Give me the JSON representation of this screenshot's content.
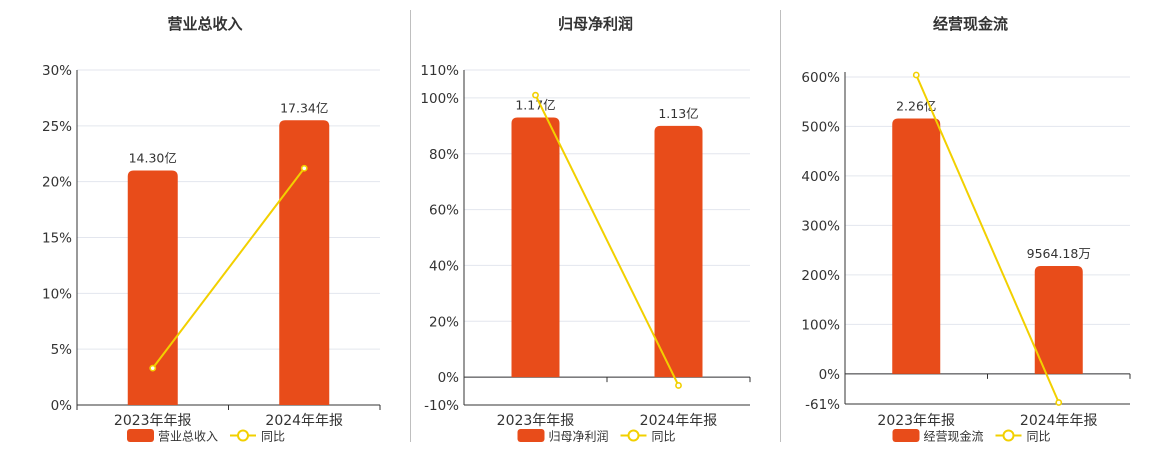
{
  "colors": {
    "bar": "#e84c1a",
    "line": "#f2d000",
    "axis": "#333333",
    "grid": "#e3e6ee",
    "text": "#333333"
  },
  "legend_line_label": "同比",
  "chart_data": [
    {
      "type": "bar",
      "title": "营业总收入",
      "categories": [
        "2023年年报",
        "2024年年报"
      ],
      "series": [
        {
          "name": "营业总收入",
          "kind": "bar",
          "values": [
            14.3,
            17.34
          ],
          "labels": [
            "14.30亿",
            "17.34亿"
          ],
          "axis_values": [
            21,
            25.5
          ]
        },
        {
          "name": "同比",
          "kind": "line",
          "values": [
            3.3,
            21.2
          ]
        }
      ],
      "ylim": [
        0,
        30
      ],
      "yticks": [
        0,
        5,
        10,
        15,
        20,
        25,
        30
      ],
      "ytick_labels": [
        "0%",
        "5%",
        "10%",
        "15%",
        "20%",
        "25%",
        "30%"
      ],
      "legend": "bottom"
    },
    {
      "type": "bar",
      "title": "归母净利润",
      "categories": [
        "2023年年报",
        "2024年年报"
      ],
      "series": [
        {
          "name": "归母净利润",
          "kind": "bar",
          "values": [
            1.17,
            1.13
          ],
          "labels": [
            "1.17亿",
            "1.13亿"
          ],
          "axis_values": [
            93,
            90
          ]
        },
        {
          "name": "同比",
          "kind": "line",
          "values": [
            101,
            -3
          ]
        }
      ],
      "ylim": [
        -10,
        110
      ],
      "yticks": [
        -10,
        0,
        20,
        40,
        60,
        80,
        100,
        110
      ],
      "ytick_labels": [
        "-10%",
        "0%",
        "20%",
        "40%",
        "60%",
        "80%",
        "100%",
        "110%"
      ],
      "legend": "bottom"
    },
    {
      "type": "bar",
      "title": "经营现金流",
      "categories": [
        "2023年年报",
        "2024年年报"
      ],
      "series": [
        {
          "name": "经营现金流",
          "kind": "bar",
          "values": [
            2.26,
            0.956418
          ],
          "labels": [
            "2.26亿",
            "9564.18万"
          ],
          "axis_values": [
            516,
            218
          ]
        },
        {
          "name": "同比",
          "kind": "line",
          "values": [
            604,
            -58
          ]
        }
      ],
      "ylim": [
        -61,
        610
      ],
      "yticks": [
        -61,
        0,
        100,
        200,
        300,
        400,
        500,
        600
      ],
      "ytick_labels": [
        "-61%",
        "0%",
        "100%",
        "200%",
        "300%",
        "400%",
        "500%",
        "600%"
      ],
      "legend": "bottom"
    }
  ]
}
